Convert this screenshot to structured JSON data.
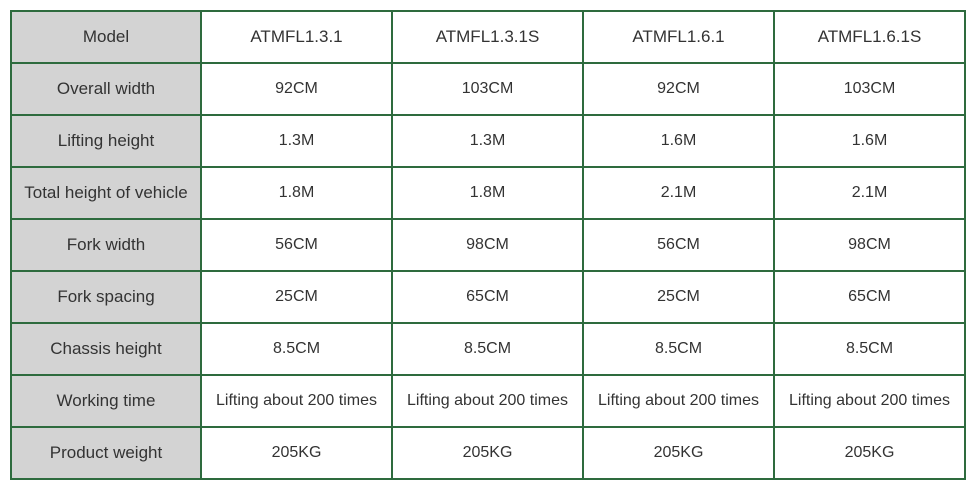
{
  "table": {
    "header": {
      "label": "Model",
      "models": [
        "ATMFL1.3.1",
        "ATMFL1.3.1S",
        "ATMFL1.6.1",
        "ATMFL1.6.1S"
      ]
    },
    "rows": [
      {
        "label": "Overall width",
        "values": [
          "92CM",
          "103CM",
          "92CM",
          "103CM"
        ]
      },
      {
        "label": "Lifting height",
        "values": [
          "1.3M",
          "1.3M",
          "1.6M",
          "1.6M"
        ]
      },
      {
        "label": "Total height of vehicle",
        "values": [
          "1.8M",
          "1.8M",
          "2.1M",
          "2.1M"
        ]
      },
      {
        "label": "Fork width",
        "values": [
          "56CM",
          "98CM",
          "56CM",
          "98CM"
        ]
      },
      {
        "label": "Fork spacing",
        "values": [
          "25CM",
          "65CM",
          "25CM",
          "65CM"
        ]
      },
      {
        "label": "Chassis height",
        "values": [
          "8.5CM",
          "8.5CM",
          "8.5CM",
          "8.5CM"
        ]
      },
      {
        "label": "Working time",
        "values": [
          "Lifting about 200 times",
          "Lifting about 200 times",
          "Lifting about 200 times",
          "Lifting about 200 times"
        ]
      },
      {
        "label": "Product weight",
        "values": [
          "205KG",
          "205KG",
          "205KG",
          "205KG"
        ]
      }
    ]
  },
  "colors": {
    "border": "#2e6b3e",
    "label_bg": "#d3d3d3",
    "text": "#333333"
  }
}
